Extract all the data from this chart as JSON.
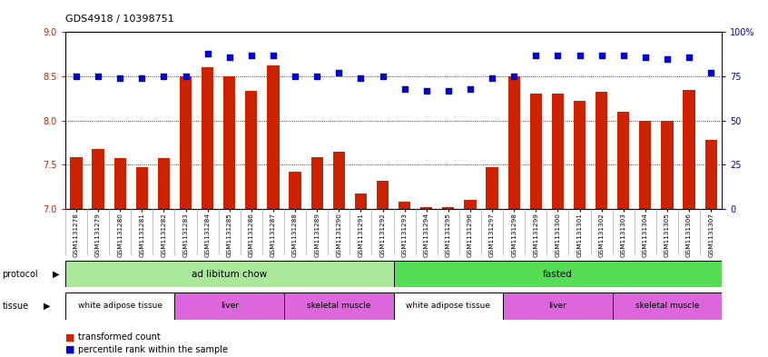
{
  "title": "GDS4918 / 10398751",
  "samples": [
    "GSM1131278",
    "GSM1131279",
    "GSM1131280",
    "GSM1131281",
    "GSM1131282",
    "GSM1131283",
    "GSM1131284",
    "GSM1131285",
    "GSM1131286",
    "GSM1131287",
    "GSM1131288",
    "GSM1131289",
    "GSM1131290",
    "GSM1131291",
    "GSM1131292",
    "GSM1131293",
    "GSM1131294",
    "GSM1131295",
    "GSM1131296",
    "GSM1131297",
    "GSM1131298",
    "GSM1131299",
    "GSM1131300",
    "GSM1131301",
    "GSM1131302",
    "GSM1131303",
    "GSM1131304",
    "GSM1131305",
    "GSM1131306",
    "GSM1131307"
  ],
  "bar_values": [
    7.58,
    7.68,
    7.57,
    7.47,
    7.57,
    8.5,
    8.6,
    8.5,
    8.34,
    8.62,
    7.42,
    7.58,
    7.65,
    7.17,
    7.32,
    7.08,
    7.02,
    7.02,
    7.1,
    7.47,
    8.5,
    8.3,
    8.3,
    8.22,
    8.33,
    8.1,
    8.0,
    8.0,
    8.35,
    7.78
  ],
  "blue_values": [
    75,
    75,
    74,
    74,
    75,
    75,
    88,
    86,
    87,
    87,
    75,
    75,
    77,
    74,
    75,
    68,
    67,
    67,
    68,
    74,
    75,
    87,
    87,
    87,
    87,
    87,
    86,
    85,
    86,
    77
  ],
  "bar_color": "#cc2200",
  "blue_color": "#0000cc",
  "ylim_left": [
    7.0,
    9.0
  ],
  "ylim_right": [
    0,
    100
  ],
  "yticks_left": [
    7.0,
    7.5,
    8.0,
    8.5,
    9.0
  ],
  "yticks_right": [
    0,
    25,
    50,
    75,
    100
  ],
  "ytick_right_labels": [
    "0",
    "25",
    "50",
    "75",
    "100%"
  ],
  "protocol_groups": [
    {
      "label": "ad libitum chow",
      "start": 0,
      "end": 14,
      "color": "#aae899"
    },
    {
      "label": "fasted",
      "start": 15,
      "end": 29,
      "color": "#55dd55"
    }
  ],
  "tissue_groups": [
    {
      "label": "white adipose tissue",
      "start": 0,
      "end": 4,
      "color": "#ffffff"
    },
    {
      "label": "liver",
      "start": 5,
      "end": 9,
      "color": "#dd66dd"
    },
    {
      "label": "skeletal muscle",
      "start": 10,
      "end": 14,
      "color": "#dd66dd"
    },
    {
      "label": "white adipose tissue",
      "start": 15,
      "end": 19,
      "color": "#ffffff"
    },
    {
      "label": "liver",
      "start": 20,
      "end": 24,
      "color": "#dd66dd"
    },
    {
      "label": "skeletal muscle",
      "start": 25,
      "end": 29,
      "color": "#dd66dd"
    }
  ],
  "grid_values": [
    7.5,
    8.0,
    8.5
  ],
  "background_color": "#ffffff",
  "plot_bg_color": "#ffffff",
  "xticklabel_bg": "#d8d8d8"
}
